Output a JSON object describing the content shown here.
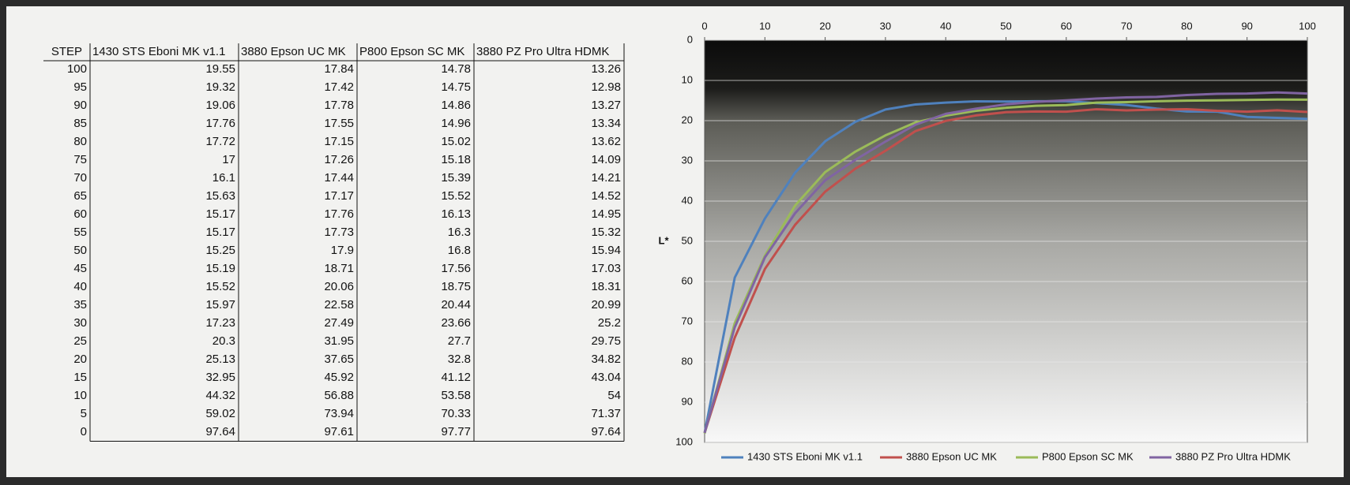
{
  "table": {
    "step_header": "STEP"
  },
  "chart_data": {
    "type": "line",
    "x": [
      100,
      95,
      90,
      85,
      80,
      75,
      70,
      65,
      60,
      55,
      50,
      45,
      40,
      35,
      30,
      25,
      20,
      15,
      10,
      5,
      0
    ],
    "series": [
      {
        "name": "1430 STS Eboni MK v1.1",
        "color": "#4f81bd",
        "values": [
          19.55,
          19.32,
          19.06,
          17.76,
          17.72,
          17,
          16.1,
          15.63,
          15.17,
          15.17,
          15.25,
          15.19,
          15.52,
          15.97,
          17.23,
          20.3,
          25.13,
          32.95,
          44.32,
          59.02,
          97.64
        ]
      },
      {
        "name": "3880 Epson UC MK",
        "color": "#c0504d",
        "values": [
          17.84,
          17.42,
          17.78,
          17.55,
          17.15,
          17.26,
          17.44,
          17.17,
          17.76,
          17.73,
          17.9,
          18.71,
          20.06,
          22.58,
          27.49,
          31.95,
          37.65,
          45.92,
          56.88,
          73.94,
          97.61
        ]
      },
      {
        "name": "P800 Epson SC MK",
        "color": "#9bbb59",
        "values": [
          14.78,
          14.75,
          14.86,
          14.96,
          15.02,
          15.18,
          15.39,
          15.52,
          16.13,
          16.3,
          16.8,
          17.56,
          18.75,
          20.44,
          23.66,
          27.7,
          32.8,
          41.12,
          53.58,
          70.33,
          97.77
        ]
      },
      {
        "name": "3880 PZ Pro Ultra HDMK",
        "color": "#8064a2",
        "values": [
          13.26,
          12.98,
          13.27,
          13.34,
          13.62,
          14.09,
          14.21,
          14.52,
          14.95,
          15.32,
          15.94,
          17.03,
          18.31,
          20.99,
          25.2,
          29.75,
          34.82,
          43.04,
          54,
          71.37,
          97.64
        ]
      }
    ],
    "y_label": "L*",
    "xlim": [
      0,
      100
    ],
    "xticks": [
      0,
      10,
      20,
      30,
      40,
      50,
      60,
      70,
      80,
      90,
      100
    ],
    "ylim": [
      0,
      100
    ],
    "yticks": [
      0,
      10,
      20,
      30,
      40,
      50,
      60,
      70,
      80,
      90,
      100
    ],
    "y_reversed": true,
    "x_axis_position": "top",
    "grid": true,
    "legend": "bottom"
  }
}
